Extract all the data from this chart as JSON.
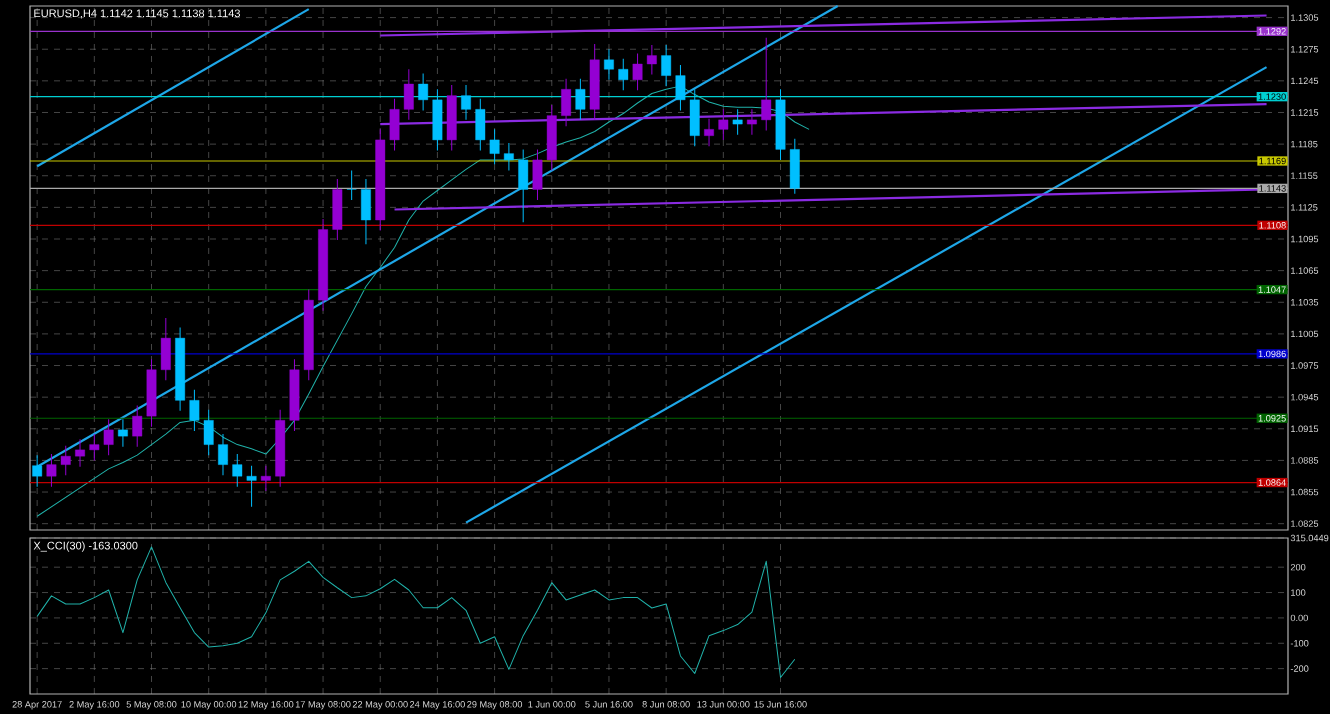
{
  "chart_data": [
    {
      "type": "candlestick",
      "title": "EURUSD,H4 1.1142 1.1145 1.1138 1.1143",
      "categories": [
        null,
        null,
        null,
        null,
        null,
        null,
        null,
        null,
        null,
        null,
        null,
        null,
        null,
        null,
        null,
        null,
        null,
        null,
        null,
        null,
        null,
        null,
        null,
        null,
        null,
        null,
        null,
        null,
        null,
        null,
        null,
        null,
        null,
        null,
        null,
        null,
        null,
        null,
        null,
        null,
        null,
        null,
        null,
        null,
        null,
        null,
        null,
        null,
        null,
        null,
        null,
        null,
        null,
        null,
        null,
        null,
        null,
        null,
        null,
        null,
        null,
        null,
        null,
        null,
        null,
        null,
        null,
        null,
        null,
        null,
        null,
        null,
        null,
        null,
        null,
        null,
        null,
        null,
        null,
        null,
        null,
        null,
        null,
        null,
        null,
        null,
        null,
        null
      ],
      "ohlc": [
        [
          1.088,
          1.089,
          1.086,
          1.087
        ],
        [
          1.087,
          1.0891,
          1.086,
          1.0881
        ],
        [
          1.0881,
          1.0899,
          1.0871,
          1.0889
        ],
        [
          1.0889,
          1.0905,
          1.0879,
          1.0895
        ],
        [
          1.0895,
          1.091,
          1.0885,
          1.09
        ],
        [
          1.09,
          1.0924,
          1.089,
          1.0914
        ],
        [
          1.0914,
          1.0924,
          1.0898,
          1.0908
        ],
        [
          1.0908,
          1.0937,
          1.0898,
          1.0927
        ],
        [
          1.0927,
          1.0981,
          1.0917,
          1.0971
        ],
        [
          1.0971,
          1.102,
          1.0961,
          1.1001
        ],
        [
          1.1001,
          1.1011,
          1.0932,
          1.0942
        ],
        [
          1.0942,
          1.0952,
          1.0913,
          1.0923
        ],
        [
          1.0923,
          1.0933,
          1.089,
          1.09
        ],
        [
          1.09,
          1.091,
          1.0871,
          1.0881
        ],
        [
          1.0881,
          1.0891,
          1.086,
          1.087
        ],
        [
          1.087,
          1.088,
          1.0841,
          1.0866
        ],
        [
          1.0866,
          1.088,
          1.0856,
          1.087
        ],
        [
          1.087,
          1.0933,
          1.086,
          1.0923
        ],
        [
          1.0923,
          1.0981,
          1.0913,
          1.0971
        ],
        [
          1.0971,
          1.1047,
          1.0961,
          1.1037
        ],
        [
          1.1037,
          1.1114,
          1.1027,
          1.1104
        ],
        [
          1.1104,
          1.1152,
          1.1094,
          1.1142
        ],
        [
          1.1142,
          1.116,
          1.1132,
          1.1142
        ],
        [
          1.1142,
          1.1152,
          1.109,
          1.1113
        ],
        [
          1.1113,
          1.1199,
          1.1103,
          1.1189
        ],
        [
          1.1189,
          1.1228,
          1.1179,
          1.1218
        ],
        [
          1.1218,
          1.1256,
          1.1208,
          1.1242
        ],
        [
          1.1242,
          1.1252,
          1.1217,
          1.1227
        ],
        [
          1.1227,
          1.1237,
          1.1179,
          1.1189
        ],
        [
          1.1189,
          1.1241,
          1.1179,
          1.1231
        ],
        [
          1.1231,
          1.1241,
          1.1208,
          1.1218
        ],
        [
          1.1218,
          1.1228,
          1.1179,
          1.1189
        ],
        [
          1.1189,
          1.1199,
          1.1166,
          1.1176
        ],
        [
          1.1176,
          1.1186,
          1.116,
          1.117
        ],
        [
          1.117,
          1.118,
          1.1111,
          1.1142
        ],
        [
          1.1142,
          1.118,
          1.1132,
          1.117
        ],
        [
          1.117,
          1.1222,
          1.116,
          1.1212
        ],
        [
          1.1212,
          1.1247,
          1.1202,
          1.1237
        ],
        [
          1.1237,
          1.1247,
          1.1208,
          1.1218
        ],
        [
          1.1218,
          1.128,
          1.1208,
          1.1265
        ],
        [
          1.1265,
          1.1275,
          1.1246,
          1.1256
        ],
        [
          1.1256,
          1.1266,
          1.1236,
          1.1246
        ],
        [
          1.1246,
          1.1271,
          1.1236,
          1.1261
        ],
        [
          1.1261,
          1.1279,
          1.1251,
          1.1269
        ],
        [
          1.1269,
          1.1279,
          1.124,
          1.125
        ],
        [
          1.125,
          1.126,
          1.1217,
          1.1227
        ],
        [
          1.1227,
          1.1237,
          1.1183,
          1.1193
        ],
        [
          1.1193,
          1.1209,
          1.1183,
          1.1199
        ],
        [
          1.1199,
          1.1218,
          1.1189,
          1.1208
        ],
        [
          1.1208,
          1.1218,
          1.1194,
          1.1204
        ],
        [
          1.1204,
          1.1218,
          1.1194,
          1.1208
        ],
        [
          1.1208,
          1.1286,
          1.1198,
          1.1227
        ],
        [
          1.1227,
          1.1237,
          1.117,
          1.118
        ],
        [
          1.118,
          1.119,
          1.1138,
          1.1143
        ],
        null,
        null,
        null,
        null,
        null,
        null,
        null,
        null,
        null,
        null,
        null,
        null,
        null,
        null,
        null,
        null,
        null,
        null,
        null,
        null,
        null,
        null,
        null,
        null,
        null,
        null,
        null,
        null,
        null,
        null,
        null,
        null,
        null,
        null
      ],
      "colors": [
        "#00bfff",
        "#9400d3",
        "#9400d3",
        "#9400d3",
        "#9400d3",
        "#9400d3",
        "#00bfff",
        "#9400d3",
        "#9400d3",
        "#9400d3",
        "#00bfff",
        "#00bfff",
        "#00bfff",
        "#00bfff",
        "#00bfff",
        "#00bfff",
        "#9400d3",
        "#9400d3",
        "#9400d3",
        "#9400d3",
        "#9400d3",
        "#9400d3",
        "#00bfff",
        "#00bfff",
        "#9400d3",
        "#9400d3",
        "#9400d3",
        "#00bfff",
        "#00bfff",
        "#9400d3",
        "#00bfff",
        "#00bfff",
        "#00bfff",
        "#00bfff",
        "#00bfff",
        "#9400d3",
        "#9400d3",
        "#9400d3",
        "#00bfff",
        "#9400d3",
        "#00bfff",
        "#00bfff",
        "#9400d3",
        "#9400d3",
        "#00bfff",
        "#00bfff",
        "#00bfff",
        "#9400d3",
        "#9400d3",
        "#00bfff",
        "#9400d3",
        "#9400d3",
        "#00bfff",
        "#00bfff",
        null,
        null,
        null,
        null,
        null,
        null,
        null,
        null,
        null,
        null,
        null,
        null,
        null,
        null,
        null,
        null,
        null,
        null,
        null,
        null,
        null,
        null,
        null,
        null,
        null,
        null,
        null,
        null,
        null,
        null,
        null,
        null,
        null,
        null
      ],
      "series": [
        {
          "type": "line",
          "color": "#20b2aa",
          "values": [
            1.0832,
            1.0841,
            1.085,
            1.0859,
            1.0868,
            1.0877,
            1.0883,
            1.089,
            1.09,
            1.091,
            1.0921,
            1.0923,
            1.0917,
            1.0907,
            1.09,
            1.0896,
            1.0891,
            1.0906,
            1.0923,
            1.0948,
            1.0974,
            1.0999,
            1.1024,
            1.105,
            1.1068,
            1.1087,
            1.1113,
            1.1131,
            1.1141,
            1.1151,
            1.1161,
            1.117,
            1.117,
            1.117,
            1.1171,
            1.1176,
            1.1182,
            1.1187,
            1.1191,
            1.1197,
            1.1206,
            1.1214,
            1.1224,
            1.1233,
            1.1237,
            1.124,
            1.1232,
            1.1225,
            1.1221,
            1.122,
            1.122,
            1.1219,
            1.1216,
            1.1206,
            1.1199,
            null,
            null,
            null,
            null,
            null,
            null,
            null,
            null,
            null,
            null,
            null,
            null,
            null,
            null,
            null,
            null,
            null,
            null,
            null,
            null,
            null,
            null,
            null,
            null,
            null,
            null,
            null,
            null,
            null,
            null,
            null,
            null,
            null
          ]
        },
        {
          "type": "line",
          "color": "#1ea7e8",
          "values": [
            1.1164,
            null,
            null,
            null,
            null,
            null,
            null,
            null,
            null,
            null,
            null,
            null,
            null,
            null,
            null,
            null,
            null,
            null,
            null,
            1.1313,
            null,
            null,
            null,
            null,
            null,
            null,
            null,
            null,
            null,
            null,
            null,
            null,
            null,
            null,
            null,
            null,
            null,
            null,
            null,
            null,
            null,
            null,
            null,
            null,
            null,
            null,
            null,
            null,
            null,
            null,
            null,
            null,
            null,
            null,
            null,
            null,
            null,
            null,
            null,
            null,
            null,
            null,
            null,
            null,
            null,
            null,
            null,
            null,
            null,
            null,
            null,
            null,
            null,
            null,
            null,
            null,
            null,
            null,
            null,
            null,
            null,
            null,
            null,
            null,
            null,
            null,
            null,
            null
          ]
        },
        {
          "type": "line",
          "color": "#1ea7e8",
          "values": [
            1.0879,
            null,
            null,
            null,
            null,
            null,
            null,
            null,
            null,
            null,
            null,
            null,
            null,
            null,
            null,
            null,
            null,
            null,
            null,
            null,
            null,
            null,
            null,
            null,
            null,
            null,
            null,
            null,
            null,
            null,
            null,
            null,
            null,
            null,
            null,
            null,
            null,
            null,
            null,
            null,
            null,
            null,
            null,
            null,
            null,
            null,
            null,
            null,
            null,
            null,
            null,
            null,
            null,
            null,
            null,
            null,
            1.1316,
            null,
            null,
            null,
            null,
            null,
            null,
            null,
            null,
            null,
            null,
            null,
            null,
            null,
            null,
            null,
            null,
            null,
            null,
            null,
            null,
            null,
            null,
            null,
            null,
            null,
            null,
            null,
            null,
            null,
            null,
            null
          ]
        },
        {
          "type": "line",
          "color": "#1ea7e8",
          "values": [
            null,
            null,
            null,
            null,
            null,
            null,
            null,
            null,
            null,
            null,
            null,
            null,
            null,
            null,
            null,
            null,
            null,
            null,
            null,
            null,
            null,
            null,
            null,
            null,
            null,
            null,
            null,
            null,
            null,
            null,
            1.0826,
            null,
            null,
            null,
            null,
            null,
            null,
            null,
            null,
            null,
            null,
            null,
            null,
            null,
            null,
            null,
            null,
            null,
            null,
            null,
            null,
            null,
            null,
            null,
            null,
            null,
            null,
            null,
            null,
            null,
            null,
            null,
            null,
            null,
            null,
            null,
            null,
            null,
            null,
            null,
            null,
            null,
            null,
            null,
            null,
            null,
            null,
            null,
            null,
            null,
            null,
            null,
            null,
            null,
            null,
            null,
            1.1258,
            null
          ]
        },
        {
          "type": "line",
          "color": "#8a2be2",
          "values": [
            null,
            null,
            null,
            null,
            null,
            null,
            null,
            null,
            null,
            null,
            null,
            null,
            null,
            null,
            null,
            null,
            null,
            null,
            null,
            null,
            null,
            null,
            null,
            null,
            1.1288,
            null,
            null,
            null,
            null,
            null,
            null,
            null,
            null,
            null,
            null,
            null,
            null,
            null,
            null,
            null,
            null,
            null,
            null,
            null,
            null,
            null,
            null,
            null,
            null,
            null,
            null,
            null,
            null,
            null,
            null,
            null,
            null,
            null,
            null,
            null,
            null,
            null,
            null,
            null,
            null,
            null,
            null,
            null,
            null,
            null,
            null,
            null,
            null,
            null,
            null,
            null,
            null,
            null,
            null,
            null,
            null,
            null,
            null,
            null,
            null,
            null,
            1.1307,
            null
          ]
        },
        {
          "type": "line",
          "color": "#8a2be2",
          "values": [
            null,
            null,
            null,
            null,
            null,
            null,
            null,
            null,
            null,
            null,
            null,
            null,
            null,
            null,
            null,
            null,
            null,
            null,
            null,
            null,
            null,
            null,
            null,
            null,
            1.1204,
            null,
            null,
            null,
            null,
            null,
            null,
            null,
            null,
            null,
            null,
            null,
            null,
            null,
            null,
            null,
            null,
            null,
            null,
            null,
            null,
            null,
            null,
            null,
            null,
            null,
            null,
            null,
            null,
            null,
            null,
            null,
            null,
            null,
            null,
            null,
            null,
            null,
            null,
            null,
            null,
            null,
            null,
            null,
            null,
            null,
            null,
            null,
            null,
            null,
            null,
            null,
            null,
            null,
            null,
            null,
            null,
            null,
            null,
            null,
            null,
            null,
            1.1223,
            null
          ]
        },
        {
          "type": "line",
          "color": "#8a2be2",
          "values": [
            null,
            null,
            null,
            null,
            null,
            null,
            null,
            null,
            null,
            null,
            null,
            null,
            null,
            null,
            null,
            null,
            null,
            null,
            null,
            null,
            null,
            null,
            null,
            null,
            null,
            1.1123,
            null,
            null,
            null,
            null,
            null,
            null,
            null,
            null,
            null,
            null,
            null,
            null,
            null,
            null,
            null,
            null,
            null,
            null,
            null,
            null,
            null,
            null,
            null,
            null,
            null,
            null,
            null,
            null,
            null,
            null,
            null,
            null,
            null,
            null,
            null,
            null,
            null,
            null,
            null,
            null,
            null,
            null,
            null,
            null,
            null,
            null,
            null,
            null,
            null,
            null,
            null,
            null,
            null,
            null,
            null,
            null,
            null,
            null,
            null,
            null,
            1.1142,
            null
          ]
        }
      ],
      "ref_lines": [
        {
          "axis": "y",
          "value": 1.1292,
          "label": "1.1292",
          "color": "#9932cc"
        },
        {
          "axis": "y",
          "value": 1.123,
          "label": "1.1230",
          "color": "#00ced1"
        },
        {
          "axis": "y",
          "value": 1.1169,
          "label": "1.1169",
          "color": "#c8c800"
        },
        {
          "axis": "y",
          "value": 1.1143,
          "label": "1.1143",
          "color": "#a9a9a9"
        },
        {
          "axis": "y",
          "value": 1.1108,
          "label": "1.1108",
          "color": "#c00000"
        },
        {
          "axis": "y",
          "value": 1.1047,
          "label": "1.1047",
          "color": "#006400"
        },
        {
          "axis": "y",
          "value": 1.0986,
          "label": "1.0986",
          "color": "#0000cd"
        },
        {
          "axis": "y",
          "value": 1.0925,
          "label": "1.0925",
          "color": "#006400"
        },
        {
          "axis": "y",
          "value": 1.0864,
          "label": "1.0864",
          "color": "#c00000"
        }
      ],
      "ylim": [
        1.0819,
        1.1316
      ],
      "yticks": [
        1.0825,
        1.0855,
        1.0885,
        1.0915,
        1.0945,
        1.0975,
        1.1005,
        1.1035,
        1.1065,
        1.1095,
        1.1125,
        1.1155,
        1.1185,
        1.1215,
        1.1245,
        1.1275,
        1.1305
      ],
      "grid": true,
      "tick_labels": "y"
    },
    {
      "type": "line",
      "title": "X_CCI(30) -163.0300",
      "color": "#20b2aa",
      "categories": [
        "28 Apr 2017",
        null,
        null,
        null,
        "2 May 16:00",
        null,
        null,
        null,
        "5 May 08:00",
        null,
        null,
        null,
        "10 May 00:00",
        null,
        null,
        null,
        "12 May 16:00",
        null,
        null,
        null,
        "17 May 08:00",
        null,
        null,
        null,
        "22 May 00:00",
        null,
        null,
        null,
        "24 May 16:00",
        null,
        null,
        null,
        "29 May 08:00",
        null,
        null,
        null,
        "1 Jun 00:00",
        null,
        null,
        null,
        "5 Jun 16:00",
        null,
        null,
        null,
        "8 Jun 08:00",
        null,
        null,
        null,
        "13 Jun 00:00",
        null,
        null,
        null,
        "15 Jun 16:00",
        null,
        null,
        null,
        null,
        null,
        null,
        null,
        null,
        null,
        null,
        null,
        null,
        null,
        null,
        null,
        null,
        null,
        null,
        null,
        null,
        null,
        null,
        null,
        null,
        null,
        null,
        null,
        null,
        null,
        null,
        null,
        null,
        null,
        null,
        null
      ],
      "values": [
        6,
        87,
        55,
        55,
        80,
        110,
        -58,
        150,
        280,
        140,
        40,
        -58,
        -115,
        -110,
        -100,
        -74,
        20,
        150,
        184,
        223,
        160,
        119,
        80,
        87,
        115,
        152,
        110,
        40,
        40,
        80,
        30,
        -100,
        -74,
        -203,
        -70,
        30,
        139,
        71,
        90,
        110,
        71,
        80,
        80,
        39,
        55,
        -150,
        -219,
        -70,
        -50,
        -26,
        23,
        223,
        -235,
        -163,
        null,
        null,
        null,
        null,
        null,
        null,
        null,
        null,
        null,
        null,
        null,
        null,
        null,
        null,
        null,
        null,
        null,
        null,
        null,
        null,
        null,
        null,
        null,
        null,
        null,
        null,
        null,
        null,
        null,
        null,
        null,
        null,
        null,
        null
      ],
      "ylim": [
        -300,
        315.0449
      ],
      "yticks": [
        315.0449,
        200,
        100,
        {
          "value": 0,
          "label": "0.00"
        },
        -100,
        -200
      ],
      "grid": true
    }
  ]
}
